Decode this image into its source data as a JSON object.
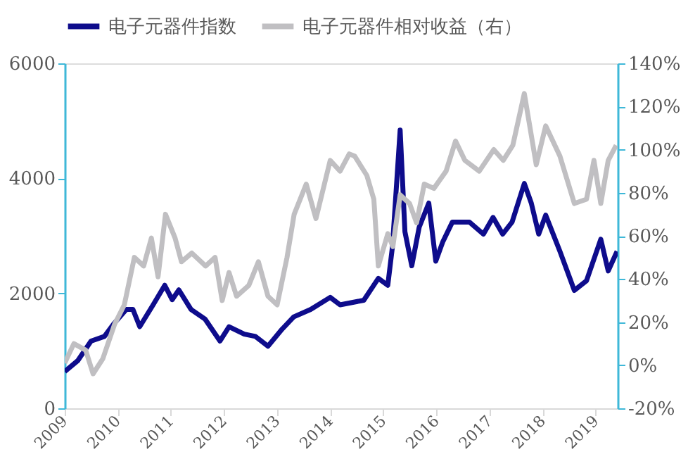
{
  "chart_data": {
    "type": "line",
    "xlim": [
      "2009-01",
      "2019-06"
    ],
    "xticks": [
      "2009",
      "2010",
      "2011",
      "2012",
      "2013",
      "2014",
      "2015",
      "2016",
      "2017",
      "2018",
      "2019"
    ],
    "ylim": [
      0,
      6000
    ],
    "yticks": [
      0,
      2000,
      4000,
      6000
    ],
    "y2lim": [
      -20,
      140
    ],
    "y2ticks": [
      {
        "value": -20,
        "label": "-20%"
      },
      {
        "value": 0,
        "label": "0%"
      },
      {
        "value": 20,
        "label": "20%"
      },
      {
        "value": 40,
        "label": "40%"
      },
      {
        "value": 60,
        "label": "60%"
      },
      {
        "value": 80,
        "label": "80%"
      },
      {
        "value": 100,
        "label": "100%"
      },
      {
        "value": 120,
        "label": "120%"
      },
      {
        "value": 140,
        "label": "140%"
      }
    ],
    "legend": "top",
    "grid": false,
    "series": [
      {
        "name": "电子元器件指数",
        "color": "#0e0c8c",
        "x": [
          "2009-01-01",
          "2009-04-01",
          "2009-07-01",
          "2009-10-01",
          "2009-12-01",
          "2010-03-01",
          "2010-04-15",
          "2010-06-01",
          "2010-09-01",
          "2010-11-20",
          "2011-01-10",
          "2011-02-25",
          "2011-05-20",
          "2011-08-25",
          "2011-12-05",
          "2012-02-05",
          "2012-05-20",
          "2012-08-05",
          "2012-10-30",
          "2013-02-05",
          "2013-04-25",
          "2013-08-20",
          "2014-01-01",
          "2014-03-10",
          "2014-08-20",
          "2014-11-28",
          "2015-02-01",
          "2015-03-05",
          "2015-04-27",
          "2015-05-30",
          "2015-07-16",
          "2015-09-05",
          "2015-11-10",
          "2015-12-28",
          "2016-02-15",
          "2016-04-20",
          "2016-08-15",
          "2016-11-20",
          "2017-01-25",
          "2017-04-01",
          "2017-06-05",
          "2017-08-28",
          "2017-10-15",
          "2017-12-05",
          "2018-01-22",
          "2018-04-30",
          "2018-08-07",
          "2018-10-30",
          "2019-02-05",
          "2019-03-28",
          "2019-05-28"
        ],
        "values": [
          640,
          830,
          1170,
          1250,
          1460,
          1720,
          1720,
          1420,
          1800,
          2140,
          1890,
          2060,
          1720,
          1550,
          1170,
          1420,
          1290,
          1250,
          1080,
          1380,
          1590,
          1720,
          1930,
          1800,
          1880,
          2260,
          2140,
          2810,
          4840,
          3070,
          2480,
          3150,
          3570,
          2560,
          2900,
          3240,
          3240,
          3030,
          3320,
          3030,
          3240,
          3910,
          3570,
          3030,
          3360,
          2730,
          2050,
          2220,
          2940,
          2390,
          2730
        ]
      },
      {
        "name": "电子元器件相对收益（右）",
        "color": "#c0bfc2",
        "axis": "y2",
        "x": [
          "2009-01-01",
          "2009-03-05",
          "2009-05-25",
          "2009-07-15",
          "2009-09-20",
          "2009-12-10",
          "2010-02-15",
          "2010-04-25",
          "2010-06-28",
          "2010-08-20",
          "2010-10-05",
          "2010-11-25",
          "2011-01-30",
          "2011-03-15",
          "2011-05-25",
          "2011-08-28",
          "2011-11-01",
          "2011-12-20",
          "2012-02-05",
          "2012-03-28",
          "2012-06-20",
          "2012-08-25",
          "2012-10-30",
          "2013-01-01",
          "2013-03-10",
          "2013-04-28",
          "2013-07-20",
          "2013-09-25",
          "2014-01-01",
          "2014-03-10",
          "2014-05-12",
          "2014-06-18",
          "2014-09-10",
          "2014-10-28",
          "2014-11-28",
          "2015-02-01",
          "2015-03-08",
          "2015-04-27",
          "2015-07-01",
          "2015-08-18",
          "2015-10-10",
          "2015-12-15",
          "2016-03-08",
          "2016-05-12",
          "2016-07-15",
          "2016-10-22",
          "2017-01-30",
          "2017-04-05",
          "2017-06-10",
          "2017-08-28",
          "2017-11-18",
          "2018-01-22",
          "2018-04-30",
          "2018-08-07",
          "2018-10-30",
          "2018-12-20",
          "2019-02-05",
          "2019-03-28",
          "2019-05-22"
        ],
        "values": [
          1,
          10,
          7,
          -4,
          3,
          19,
          28,
          50,
          46,
          59,
          41,
          70,
          59,
          48,
          52,
          46,
          50,
          30,
          43,
          32,
          37,
          48,
          32,
          28,
          50,
          70,
          84,
          68,
          95,
          90,
          98,
          97,
          88,
          77,
          46,
          61,
          55,
          79,
          75,
          66,
          84,
          82,
          90,
          104,
          95,
          90,
          100,
          95,
          102,
          126,
          93,
          111,
          97,
          75,
          77,
          95,
          75,
          95,
          102
        ]
      }
    ]
  }
}
